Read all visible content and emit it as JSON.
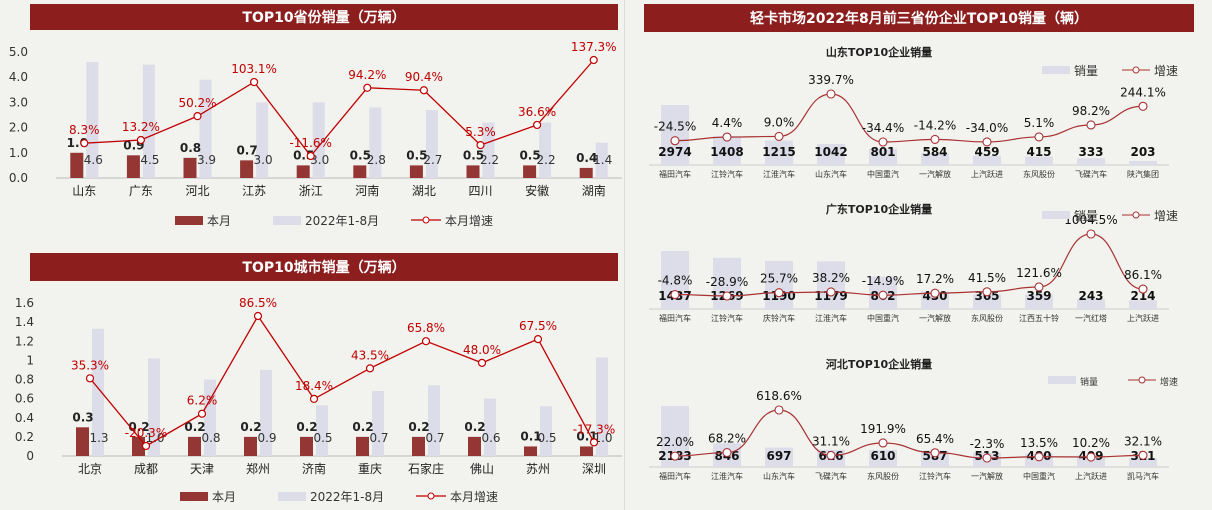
{
  "colors": {
    "bar_month": "#943634",
    "bar_ytd": "#dcdde8",
    "growth": "#c00000",
    "growth_small": "#a83232",
    "title_bg": "#8c1e1e"
  },
  "left_top_title": "TOP10省份销量（万辆）",
  "left_bottom_title": "TOP10城市销量（万辆）",
  "right_title": "轻卡市场2022年8月前三省份企业TOP10销量（辆）",
  "chart_data": [
    {
      "type": "bar",
      "title": "TOP10省份销量（万辆）",
      "categories": [
        "山东",
        "广东",
        "河北",
        "江苏",
        "浙江",
        "河南",
        "湖北",
        "四川",
        "安徽",
        "湖南"
      ],
      "series": [
        {
          "name": "本月",
          "values": [
            1.0,
            0.9,
            0.8,
            0.7,
            0.5,
            0.5,
            0.5,
            0.5,
            0.5,
            0.4
          ],
          "labels": [
            "1.0",
            "0.9",
            "0.8",
            "0.7",
            "0.5",
            "0.5",
            "0.5",
            "0.5",
            "0.5",
            "0.4"
          ]
        },
        {
          "name": "2022年1-8月",
          "values": [
            4.6,
            4.5,
            3.9,
            3.0,
            3.0,
            2.8,
            2.7,
            2.2,
            2.2,
            1.4
          ],
          "labels": [
            "4.6",
            "4.5",
            "3.9",
            "3.0",
            "3.0",
            "2.8",
            "2.7",
            "2.2",
            "2.2",
            "1.4"
          ]
        },
        {
          "name": "本月增速",
          "values": [
            8.3,
            13.2,
            50.2,
            103.1,
            -11.6,
            94.2,
            90.4,
            5.3,
            36.6,
            137.3
          ],
          "labels": [
            "8.3%",
            "13.2%",
            "50.2%",
            "103.1%",
            "-11.6%",
            "94.2%",
            "90.4%",
            "5.3%",
            "36.6%",
            "137.3%"
          ]
        }
      ],
      "ylim": [
        0,
        5
      ],
      "yticks": [
        "0.0",
        "1.0",
        "2.0",
        "3.0",
        "4.0",
        "5.0"
      ],
      "legend": [
        "本月",
        "2022年1-8月",
        "本月增速"
      ]
    },
    {
      "type": "bar",
      "title": "TOP10城市销量（万辆）",
      "categories": [
        "北京",
        "成都",
        "天津",
        "郑州",
        "济南",
        "重庆",
        "石家庄",
        "佛山",
        "苏州",
        "深圳"
      ],
      "series": [
        {
          "name": "本月",
          "values": [
            0.3,
            0.2,
            0.2,
            0.2,
            0.2,
            0.2,
            0.2,
            0.2,
            0.1,
            0.1
          ],
          "labels": [
            "0.3",
            "0.2",
            "0.2",
            "0.2",
            "0.2",
            "0.2",
            "0.2",
            "0.2",
            "0.1",
            "0.1"
          ]
        },
        {
          "name": "2022年1-8月",
          "values": [
            1.33,
            1.02,
            0.8,
            0.9,
            0.53,
            0.68,
            0.74,
            0.6,
            0.52,
            1.03
          ],
          "labels": [
            "1.3",
            "1.0",
            "0.8",
            "0.9",
            "0.5",
            "0.7",
            "0.7",
            "0.6",
            "0.5",
            "1.0"
          ]
        },
        {
          "name": "本月增速",
          "values": [
            35.3,
            -20.3,
            6.2,
            86.5,
            18.4,
            43.5,
            65.8,
            48.0,
            67.5,
            -17.3
          ],
          "labels": [
            "35.3%",
            "-20.3%",
            "6.2%",
            "86.5%",
            "18.4%",
            "43.5%",
            "65.8%",
            "48.0%",
            "67.5%",
            "-17.3%"
          ]
        }
      ],
      "ylim": [
        0,
        1.6
      ],
      "yticks": [
        "0",
        "0.2",
        "0.4",
        "0.6",
        "0.8",
        "1",
        "1.2",
        "1.4",
        "1.6"
      ],
      "legend": [
        "本月",
        "2022年1-8月",
        "本月增速"
      ]
    },
    {
      "type": "bar",
      "title": "山东TOP10企业销量",
      "categories": [
        "福田汽车",
        "江铃汽车",
        "江淮汽车",
        "山东汽车",
        "中国重汽",
        "一汽解放",
        "上汽跃进",
        "东风股份",
        "飞碟汽车",
        "陕汽集团"
      ],
      "series": [
        {
          "name": "销量",
          "values": [
            2974,
            1408,
            1215,
            1042,
            801,
            584,
            459,
            415,
            333,
            203
          ],
          "labels": [
            "2974",
            "1408",
            "1215",
            "1042",
            "801",
            "584",
            "459",
            "415",
            "333",
            "203"
          ]
        },
        {
          "name": "增速",
          "values": [
            -24.5,
            4.4,
            9.0,
            339.7,
            -34.4,
            -14.2,
            -34.0,
            5.1,
            98.2,
            244.1
          ],
          "labels": [
            "-24.5%",
            "4.4%",
            "9.0%",
            "339.7%",
            "-34.4%",
            "-14.2%",
            "-34.0%",
            "5.1%",
            "98.2%",
            "244.1%"
          ]
        }
      ],
      "legend": [
        "销量",
        "增速"
      ]
    },
    {
      "type": "bar",
      "title": "广东TOP10企业销量",
      "categories": [
        "福田汽车",
        "江铃汽车",
        "庆铃汽车",
        "江淮汽车",
        "中国重汽",
        "一汽解放",
        "东风股份",
        "江西五十铃",
        "一汽红塔",
        "上汽跃进"
      ],
      "series": [
        {
          "name": "销量",
          "values": [
            1437,
            1269,
            1190,
            1179,
            802,
            430,
            365,
            359,
            243,
            214
          ],
          "labels": [
            "1437",
            "1269",
            "1190",
            "1179",
            "802",
            "430",
            "365",
            "359",
            "243",
            "214"
          ]
        },
        {
          "name": "增速",
          "values": [
            -4.8,
            -28.9,
            25.7,
            38.2,
            -14.9,
            17.2,
            41.5,
            121.6,
            1004.5,
            86.1
          ],
          "labels": [
            "-4.8%",
            "-28.9%",
            "25.7%",
            "38.2%",
            "-14.9%",
            "17.2%",
            "41.5%",
            "121.6%",
            "1004.5%",
            "86.1%"
          ]
        }
      ],
      "legend": [
        "销量",
        "增速"
      ]
    },
    {
      "type": "bar",
      "title": "河北TOP10企业销量",
      "categories": [
        "福田汽车",
        "江淮汽车",
        "山东汽车",
        "飞碟汽车",
        "东风股份",
        "江铃汽车",
        "一汽解放",
        "中国重汽",
        "上汽跃进",
        "凯马汽车"
      ],
      "series": [
        {
          "name": "销量",
          "values": [
            2183,
            846,
            697,
            616,
            610,
            587,
            513,
            480,
            409,
            321
          ],
          "labels": [
            "2183",
            "846",
            "697",
            "616",
            "610",
            "587",
            "513",
            "480",
            "409",
            "321"
          ]
        },
        {
          "name": "增速",
          "values": [
            22.0,
            68.2,
            618.6,
            31.1,
            191.9,
            65.4,
            -2.3,
            13.5,
            10.2,
            32.1
          ],
          "labels": [
            "22.0%",
            "68.2%",
            "618.6%",
            "31.1%",
            "191.9%",
            "65.4%",
            "-2.3%",
            "13.5%",
            "10.2%",
            "32.1%"
          ]
        }
      ],
      "legend": [
        "销量",
        "增速"
      ]
    }
  ]
}
